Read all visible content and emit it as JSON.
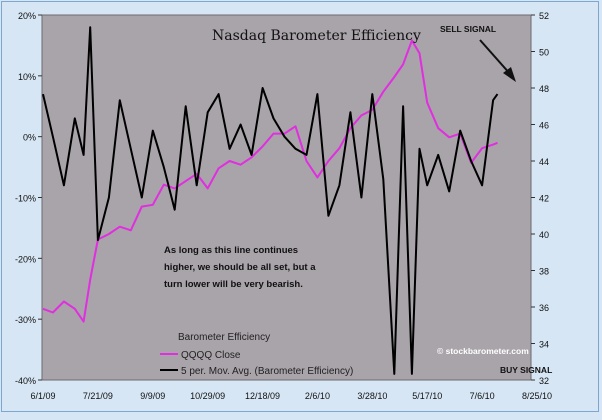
{
  "chart_data": {
    "type": "line",
    "title": "Nasdaq Barometer Efficiency",
    "x_tick_labels": [
      "6/1/09",
      "7/21/09",
      "9/9/09",
      "10/29/09",
      "12/18/09",
      "2/6/10",
      "3/28/10",
      "5/17/10",
      "7/6/10",
      "8/25/10"
    ],
    "y_left": {
      "ticks": [
        "20%",
        "10%",
        "0%",
        "-10%",
        "-20%",
        "-30%",
        "-40%"
      ],
      "range": [
        -40,
        20
      ],
      "unit": "%"
    },
    "y_right": {
      "ticks": [
        "52",
        "50",
        "48",
        "46",
        "44",
        "42",
        "40",
        "38",
        "36",
        "34",
        "32"
      ],
      "range": [
        32,
        52
      ]
    },
    "legend": {
      "title": "Barometer Efficiency",
      "entries": [
        "QQQQ Close",
        "5 per. Mov. Avg. (Barometer Efficiency)"
      ],
      "placement": "bottom-left"
    },
    "series": [
      {
        "name": "QQQQ Close",
        "axis": "right",
        "color": "#e02ee0",
        "x": [
          "6/1/09",
          "6/10/09",
          "6/20/09",
          "6/30/09",
          "7/8/09",
          "7/14/09",
          "7/21/09",
          "7/31/09",
          "8/10/09",
          "8/20/09",
          "8/30/09",
          "9/9/09",
          "9/19/09",
          "9/29/09",
          "10/9/09",
          "10/19/09",
          "10/29/09",
          "11/8/09",
          "11/18/09",
          "11/28/09",
          "12/8/09",
          "12/18/09",
          "12/28/09",
          "1/7/10",
          "1/17/10",
          "1/27/10",
          "2/6/10",
          "2/16/10",
          "2/26/10",
          "3/8/10",
          "3/18/10",
          "3/28/10",
          "4/7/10",
          "4/17/10",
          "4/25/10",
          "5/3/10",
          "5/10/10",
          "5/17/10",
          "5/27/10",
          "6/6/10",
          "6/16/10",
          "6/26/10",
          "7/6/10",
          "7/16/10",
          "7/20/10"
        ],
        "values": [
          35.9,
          35.7,
          36.3,
          35.9,
          35.2,
          37.5,
          39.7,
          40.0,
          40.4,
          40.2,
          41.5,
          41.6,
          42.7,
          42.5,
          42.9,
          43.3,
          42.5,
          43.6,
          44.0,
          43.8,
          44.2,
          44.8,
          45.5,
          45.5,
          45.9,
          44.0,
          43.1,
          44.0,
          44.7,
          45.8,
          46.5,
          46.8,
          47.8,
          48.6,
          49.3,
          50.6,
          49.9,
          47.2,
          45.8,
          45.3,
          45.5,
          43.9,
          44.7,
          44.9,
          45.0
        ]
      },
      {
        "name": "5 per. Mov. Avg. (Barometer Efficiency)",
        "axis": "left",
        "color": "#000000",
        "x": [
          "6/1/09",
          "6/10/09",
          "6/20/09",
          "6/30/09",
          "7/8/09",
          "7/14/09",
          "7/21/09",
          "7/31/09",
          "8/10/09",
          "8/20/09",
          "8/30/09",
          "9/9/09",
          "9/19/09",
          "9/29/09",
          "10/9/09",
          "10/19/09",
          "10/29/09",
          "11/8/09",
          "11/18/09",
          "11/28/09",
          "12/8/09",
          "12/18/09",
          "12/28/09",
          "1/7/10",
          "1/17/10",
          "1/27/10",
          "2/6/10",
          "2/16/10",
          "2/26/10",
          "3/8/10",
          "3/18/10",
          "3/28/10",
          "4/7/10",
          "4/17/10",
          "4/25/10",
          "5/3/10",
          "5/10/10",
          "5/17/10",
          "5/27/10",
          "6/6/10",
          "6/16/10",
          "6/26/10",
          "7/6/10",
          "7/16/10",
          "7/20/10"
        ],
        "values": [
          7,
          0,
          -8,
          3,
          -3,
          18,
          -17,
          -10,
          6,
          -2,
          -10,
          1,
          -5,
          -12,
          5,
          -8,
          4,
          7,
          -2,
          2,
          -3,
          8,
          3,
          0,
          -2,
          -3,
          7,
          -13,
          -8,
          4,
          -10,
          7,
          -7,
          -39,
          5,
          -39,
          -2,
          -8,
          -3,
          -9,
          1,
          -4,
          -8,
          6,
          7
        ]
      }
    ],
    "annotations": [
      "SELL SIGNAL",
      "BUY SIGNAL",
      "As long as this line continues\nhigher, we should be all set, but a\nturn lower will be very bearish.",
      "© stockbarometer.com"
    ],
    "grid": false
  }
}
